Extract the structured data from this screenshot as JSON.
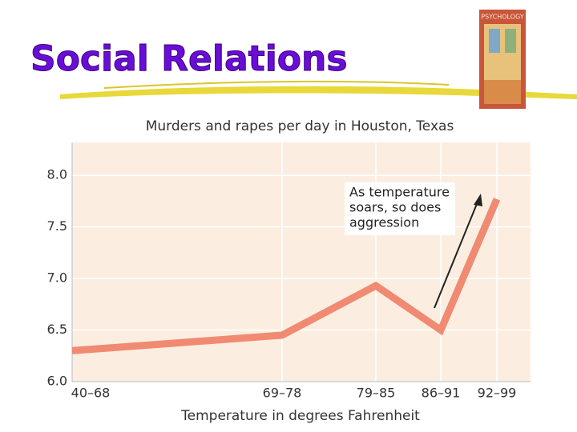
{
  "slide_title": "Social Relations",
  "cover_title": "PSYCHOLOGY",
  "chart_data": {
    "type": "line",
    "title": "Murders and rapes per day in Houston, Texas",
    "x_label": "Temperature in degrees Fahrenheit",
    "categories": [
      "40–68",
      "69–78",
      "79–85",
      "86–91",
      "92–99"
    ],
    "series": [
      {
        "name": "Murders and rapes per day",
        "color": "#f08a72",
        "values": [
          6.3,
          6.45,
          6.93,
          6.5,
          7.77
        ]
      }
    ],
    "ylim": [
      6.0,
      8.32
    ],
    "yticks": [
      {
        "value": 6,
        "label": "6.0"
      },
      {
        "value": 6.5,
        "label": "6.5"
      },
      {
        "value": 7,
        "label": "7.0"
      },
      {
        "value": 7.5,
        "label": "7.5"
      },
      {
        "value": 8,
        "label": "8.0"
      }
    ],
    "grid": true,
    "annotation": [
      "As temperature",
      "soars, so does",
      "aggression"
    ]
  }
}
